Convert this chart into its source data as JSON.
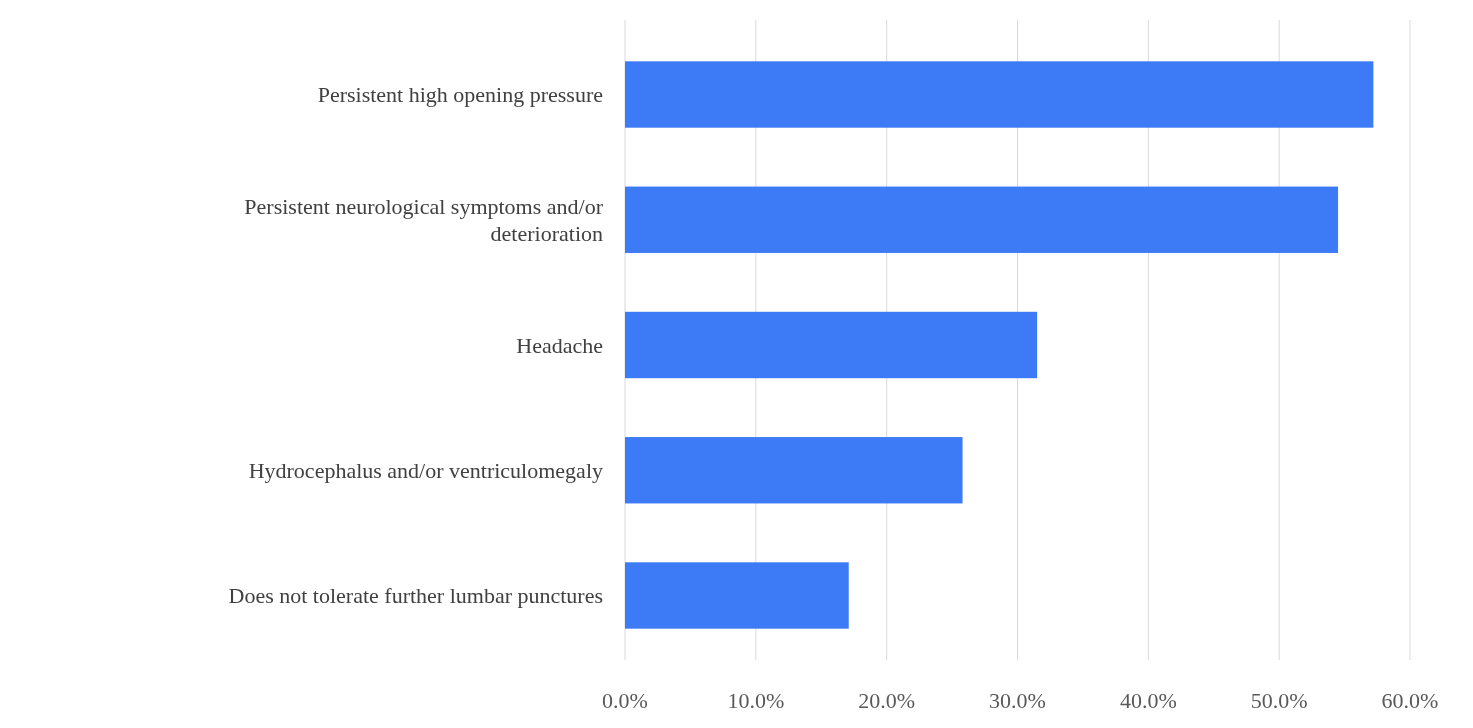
{
  "chart_data": {
    "type": "bar",
    "orientation": "horizontal",
    "categories": [
      "Persistent high opening pressure",
      "Persistent neurological symptoms and/or deterioration",
      "Headache",
      "Hydrocephalus and/or ventriculomegaly",
      "Does not tolerate further lumbar punctures"
    ],
    "values": [
      57.2,
      54.5,
      31.5,
      25.8,
      17.1
    ],
    "color": "#3d7af5",
    "xlim": [
      0,
      60
    ],
    "xticks": [
      {
        "value": 0,
        "label": "0.0%"
      },
      {
        "value": 10,
        "label": "10.0%"
      },
      {
        "value": 20,
        "label": "20.0%"
      },
      {
        "value": 30,
        "label": "30.0%"
      },
      {
        "value": 40,
        "label": "40.0%"
      },
      {
        "value": 50,
        "label": "50.0%"
      },
      {
        "value": 60,
        "label": "60.0%"
      }
    ],
    "grid": "x"
  }
}
